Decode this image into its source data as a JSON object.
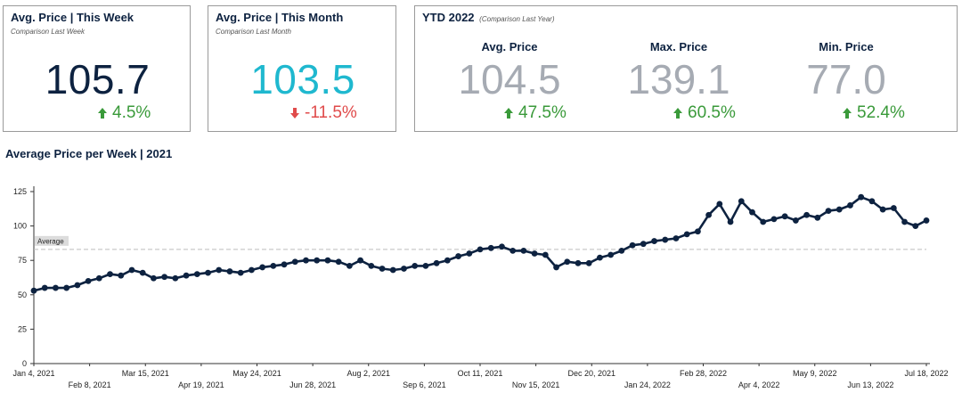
{
  "cards": {
    "week": {
      "title": "Avg. Price | This Week",
      "subtitle": "Comparison Last Week",
      "value": "105.7",
      "delta": "4.5%",
      "direction": "up"
    },
    "month": {
      "title": "Avg. Price | This Month",
      "subtitle": "Comparison Last Month",
      "value": "103.5",
      "delta": "-11.5%",
      "direction": "down"
    },
    "ytd": {
      "title": "YTD 2022",
      "subtitle": "(Comparison Last Year)",
      "cols": [
        {
          "label": "Avg. Price",
          "value": "104.5",
          "delta": "47.5%"
        },
        {
          "label": "Max. Price",
          "value": "139.1",
          "delta": "60.5%"
        },
        {
          "label": "Min. Price",
          "value": "77.0",
          "delta": "52.4%"
        }
      ]
    }
  },
  "colors": {
    "accent_week": "#0d2240",
    "accent_month": "#1fb8cf",
    "up": "#3a9a3a",
    "down": "#e04b4b",
    "line": "#0d2240",
    "muted": "#a6abb3"
  },
  "chart_data": {
    "type": "line",
    "title": "Average Price per Week | 2021",
    "ylim": [
      0,
      125
    ],
    "yticks": [
      0,
      25,
      50,
      75,
      100,
      125
    ],
    "average": {
      "label": "Average",
      "value": 83
    },
    "grid": false,
    "xtick_labels": [
      "Jan 4, 2021",
      "Feb 8, 2021",
      "Mar 15, 2021",
      "Apr 19, 2021",
      "May 24, 2021",
      "Jun 28, 2021",
      "Aug 2, 2021",
      "Sep 6, 2021",
      "Oct 11, 2021",
      "Nov 15, 2021",
      "Dec 20, 2021",
      "Jan 24, 2022",
      "Feb 28, 2022",
      "Apr 4, 2022",
      "May 9, 2022",
      "Jun 13, 2022",
      "Jul 18, 2022"
    ],
    "values": [
      53,
      55,
      55,
      55,
      57,
      60,
      62,
      65,
      64,
      68,
      66,
      62,
      63,
      62,
      64,
      65,
      66,
      68,
      67,
      66,
      68,
      70,
      71,
      72,
      74,
      75,
      75,
      75,
      74,
      71,
      75,
      71,
      69,
      68,
      69,
      71,
      71,
      73,
      75,
      78,
      80,
      83,
      84,
      85,
      82,
      82,
      80,
      79,
      70,
      74,
      73,
      73,
      77,
      79,
      82,
      86,
      87,
      89,
      90,
      91,
      94,
      96,
      108,
      116,
      103,
      118,
      110,
      103,
      105,
      107,
      104,
      108,
      106,
      111,
      112,
      115,
      121,
      118,
      112,
      113,
      103,
      100,
      104
    ]
  }
}
